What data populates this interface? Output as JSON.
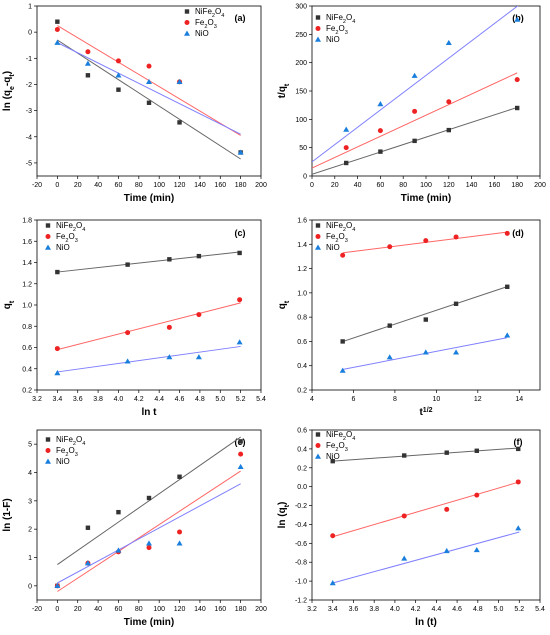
{
  "series_names": [
    "NiFe2O4",
    "Fe2O3",
    "NiO"
  ],
  "colors": {
    "NiFe2O4": "#333333",
    "Fe2O3": "#ee2222",
    "NiO": "#1a7fdc"
  },
  "line_colors": {
    "NiFe2O4": "#666666",
    "Fe2O3": "#ff6666",
    "NiO": "#8080ff"
  },
  "chart_data": [
    {
      "id": "a",
      "panel_label": "(a)",
      "type": "scatter",
      "xlabel": "Time (min)",
      "ylabel": "ln (qe-qt)",
      "xlim": [
        -20,
        200
      ],
      "ylim": [
        -5.5,
        1
      ],
      "xticks": [
        -20,
        0,
        20,
        40,
        60,
        80,
        100,
        120,
        140,
        160,
        180,
        200
      ],
      "yticks": [
        -5,
        -4,
        -3,
        -2,
        -1,
        0,
        1
      ],
      "legend": "top-right",
      "series": [
        {
          "name": "NiFe2O4",
          "marker": "square",
          "x": [
            0,
            30,
            60,
            90,
            120,
            180
          ],
          "y": [
            0.4,
            -1.65,
            -2.2,
            -2.7,
            -3.45,
            -4.6
          ],
          "fit": [
            [
              0,
              -0.3
            ],
            [
              180,
              -4.85
            ]
          ]
        },
        {
          "name": "Fe2O3",
          "marker": "circle",
          "x": [
            0,
            30,
            60,
            90,
            120
          ],
          "y": [
            0.1,
            -0.75,
            -1.1,
            -1.3,
            -1.9
          ],
          "fit": [
            [
              0,
              0.25
            ],
            [
              180,
              -3.95
            ]
          ]
        },
        {
          "name": "NiO",
          "marker": "triangle",
          "x": [
            0,
            30,
            60,
            90,
            120,
            180
          ],
          "y": [
            -0.4,
            -1.2,
            -1.65,
            -1.9,
            -1.9,
            -4.6
          ],
          "fit": [
            [
              0,
              -0.4
            ],
            [
              180,
              -3.9
            ]
          ]
        }
      ]
    },
    {
      "id": "b",
      "panel_label": "(b)",
      "type": "scatter",
      "xlabel": "Time (min)",
      "ylabel": "t/qt",
      "xlim": [
        0,
        200
      ],
      "ylim": [
        0,
        300
      ],
      "xticks": [
        0,
        20,
        40,
        60,
        80,
        100,
        120,
        140,
        160,
        180,
        200
      ],
      "yticks": [
        0,
        50,
        100,
        150,
        200,
        250,
        300
      ],
      "legend": "top-left",
      "series": [
        {
          "name": "NiFe2O4",
          "marker": "square",
          "x": [
            30,
            60,
            90,
            120,
            180
          ],
          "y": [
            23,
            43,
            62,
            81,
            120
          ],
          "fit": [
            [
              0,
              3
            ],
            [
              180,
              121
            ]
          ]
        },
        {
          "name": "Fe2O3",
          "marker": "circle",
          "x": [
            30,
            60,
            90,
            120,
            180
          ],
          "y": [
            50,
            80,
            114,
            131,
            170
          ],
          "fit": [
            [
              0,
              14
            ],
            [
              180,
              182
            ]
          ]
        },
        {
          "name": "NiO",
          "marker": "triangle",
          "x": [
            30,
            60,
            90,
            120,
            180
          ],
          "y": [
            82,
            127,
            177,
            235,
            276
          ],
          "fit": [
            [
              0,
              25
            ],
            [
              200,
              330
            ]
          ]
        }
      ]
    },
    {
      "id": "c",
      "panel_label": "(c)",
      "type": "scatter",
      "xlabel": "ln t",
      "ylabel": "qt",
      "xlim": [
        3.2,
        5.4
      ],
      "ylim": [
        0.2,
        1.8
      ],
      "xticks": [
        3.2,
        3.4,
        3.6,
        3.8,
        4.0,
        4.2,
        4.4,
        4.6,
        4.8,
        5.0,
        5.2,
        5.4
      ],
      "yticks": [
        0.2,
        0.4,
        0.6,
        0.8,
        1.0,
        1.2,
        1.4,
        1.6,
        1.8
      ],
      "legend": "top-left",
      "series": [
        {
          "name": "NiFe2O4",
          "marker": "square",
          "x": [
            3.4,
            4.09,
            4.5,
            4.79,
            5.19
          ],
          "y": [
            1.31,
            1.38,
            1.43,
            1.46,
            1.49
          ],
          "fit": [
            [
              3.4,
              1.31
            ],
            [
              5.2,
              1.5
            ]
          ]
        },
        {
          "name": "Fe2O3",
          "marker": "circle",
          "x": [
            3.4,
            4.09,
            4.5,
            4.79,
            5.19
          ],
          "y": [
            0.59,
            0.74,
            0.79,
            0.91,
            1.05
          ],
          "fit": [
            [
              3.4,
              0.58
            ],
            [
              5.2,
              1.02
            ]
          ]
        },
        {
          "name": "NiO",
          "marker": "triangle",
          "x": [
            3.4,
            4.09,
            4.5,
            4.79,
            5.19
          ],
          "y": [
            0.36,
            0.47,
            0.51,
            0.51,
            0.65
          ],
          "fit": [
            [
              3.4,
              0.37
            ],
            [
              5.2,
              0.61
            ]
          ]
        }
      ]
    },
    {
      "id": "d",
      "panel_label": "(d)",
      "type": "scatter",
      "xlabel": "t1/2",
      "ylabel": "qt",
      "xlim": [
        4,
        15
      ],
      "ylim": [
        0.2,
        1.6
      ],
      "xticks": [
        4,
        6,
        8,
        10,
        12,
        14
      ],
      "yticks": [
        0.2,
        0.4,
        0.6,
        0.8,
        1.0,
        1.2,
        1.4,
        1.6
      ],
      "legend": "top-left",
      "series": [
        {
          "name": "NiFe2O4",
          "marker": "square",
          "x": [
            5.48,
            7.75,
            9.49,
            10.95,
            13.42
          ],
          "y": [
            0.6,
            0.73,
            0.78,
            0.91,
            1.05
          ],
          "fit": [
            [
              5.5,
              0.6
            ],
            [
              13.4,
              1.05
            ]
          ]
        },
        {
          "name": "Fe2O3",
          "marker": "circle",
          "x": [
            5.48,
            7.75,
            9.49,
            10.95,
            13.42
          ],
          "y": [
            1.31,
            1.38,
            1.43,
            1.46,
            1.49
          ],
          "fit": [
            [
              5.5,
              1.33
            ],
            [
              13.4,
              1.5
            ]
          ]
        },
        {
          "name": "NiO",
          "marker": "triangle",
          "x": [
            5.48,
            7.75,
            9.49,
            10.95,
            13.42
          ],
          "y": [
            0.36,
            0.47,
            0.51,
            0.51,
            0.65
          ],
          "fit": [
            [
              5.5,
              0.37
            ],
            [
              13.4,
              0.63
            ]
          ]
        }
      ]
    },
    {
      "id": "e",
      "panel_label": "(e)",
      "type": "scatter",
      "xlabel": "Time (min)",
      "ylabel": "ln (1-F)",
      "xlim": [
        -20,
        200
      ],
      "ylim": [
        -0.5,
        5.5
      ],
      "xticks": [
        -20,
        0,
        20,
        40,
        60,
        80,
        100,
        120,
        140,
        160,
        180,
        200
      ],
      "yticks": [
        0,
        1,
        2,
        3,
        4,
        5
      ],
      "legend": "top-left",
      "series": [
        {
          "name": "NiFe2O4",
          "marker": "square",
          "x": [
            0,
            30,
            60,
            90,
            120,
            180
          ],
          "y": [
            0,
            2.05,
            2.6,
            3.1,
            3.85,
            5.1
          ],
          "fit": [
            [
              0,
              0.75
            ],
            [
              180,
              5.25
            ]
          ]
        },
        {
          "name": "Fe2O3",
          "marker": "circle",
          "x": [
            0,
            30,
            60,
            90,
            120,
            180
          ],
          "y": [
            0,
            0.8,
            1.2,
            1.35,
            1.9,
            4.65
          ],
          "fit": [
            [
              0,
              -0.2
            ],
            [
              180,
              4.05
            ]
          ]
        },
        {
          "name": "NiO",
          "marker": "triangle",
          "x": [
            0,
            30,
            60,
            90,
            120,
            180
          ],
          "y": [
            0,
            0.8,
            1.25,
            1.5,
            1.5,
            4.2
          ],
          "fit": [
            [
              0,
              0.1
            ],
            [
              180,
              3.6
            ]
          ]
        }
      ]
    },
    {
      "id": "f",
      "panel_label": "(f)",
      "type": "scatter",
      "xlabel": "ln (t)",
      "ylabel": "ln (qt)",
      "xlim": [
        3.2,
        5.4
      ],
      "ylim": [
        -1.2,
        0.6
      ],
      "xticks": [
        3.2,
        3.4,
        3.6,
        3.8,
        4.0,
        4.2,
        4.4,
        4.6,
        4.8,
        5.0,
        5.2,
        5.4
      ],
      "yticks": [
        -1.2,
        -1.0,
        -0.8,
        -0.6,
        -0.4,
        -0.2,
        0.0,
        0.2,
        0.4,
        0.6
      ],
      "legend": "top-left",
      "series": [
        {
          "name": "NiFe2O4",
          "marker": "square",
          "x": [
            3.4,
            4.09,
            4.5,
            4.79,
            5.19
          ],
          "y": [
            0.27,
            0.33,
            0.36,
            0.38,
            0.4
          ],
          "fit": [
            [
              3.4,
              0.27
            ],
            [
              5.2,
              0.41
            ]
          ]
        },
        {
          "name": "Fe2O3",
          "marker": "circle",
          "x": [
            3.4,
            4.09,
            4.5,
            4.79,
            5.19
          ],
          "y": [
            -0.52,
            -0.31,
            -0.24,
            -0.09,
            0.05
          ],
          "fit": [
            [
              3.4,
              -0.53
            ],
            [
              5.2,
              0.05
            ]
          ]
        },
        {
          "name": "NiO",
          "marker": "triangle",
          "x": [
            3.4,
            4.09,
            4.5,
            4.79,
            5.19
          ],
          "y": [
            -1.02,
            -0.76,
            -0.68,
            -0.67,
            -0.44
          ],
          "fit": [
            [
              3.4,
              -1.02
            ],
            [
              5.2,
              -0.48
            ]
          ]
        }
      ]
    }
  ]
}
